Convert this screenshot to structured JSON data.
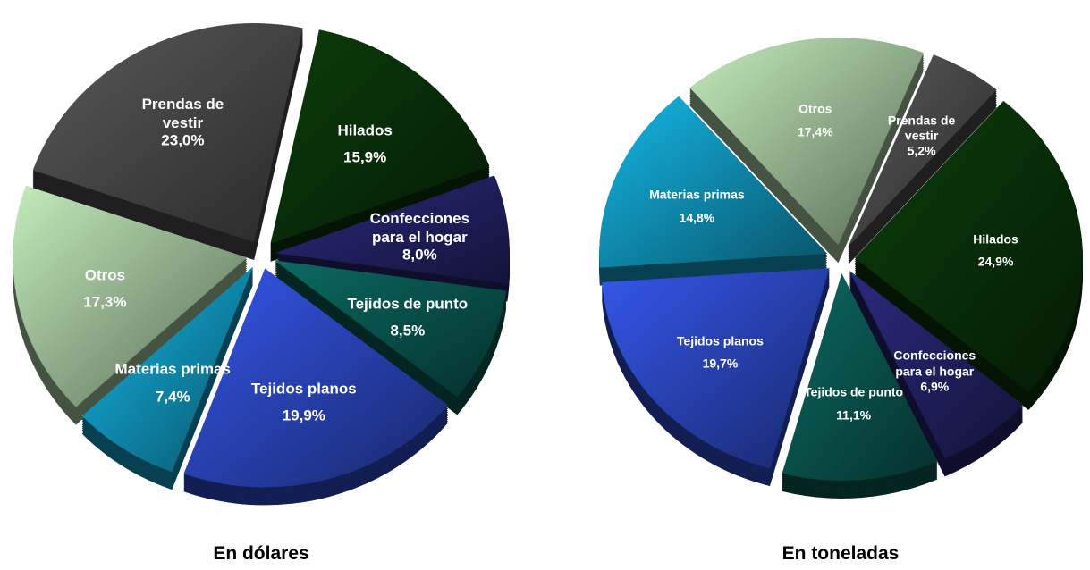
{
  "chart_data": [
    {
      "type": "pie",
      "title": "En dólares",
      "categories": [
        "Hilados",
        "Confecciones para el hogar",
        "Tejidos de punto",
        "Tejidos planos",
        "Materias primas",
        "Otros",
        "Prendas de vestir"
      ],
      "values": [
        15.9,
        8.0,
        8.5,
        19.9,
        7.4,
        17.3,
        23.0
      ],
      "value_labels": [
        "15,9%",
        "8,0%",
        "8,5%",
        "19,9%",
        "7,4%",
        "17,3%",
        "23,0%"
      ],
      "colors": [
        "#0b3d0b",
        "#2b2a7e",
        "#0c6a62",
        "#3557ec",
        "#14b8e8",
        "#c4ecbc",
        "#5a5a5a"
      ]
    },
    {
      "type": "pie",
      "title": "En toneladas",
      "categories": [
        "Prendas de vestir",
        "Hilados",
        "Confecciones para el hogar",
        "Tejidos de punto",
        "Tejidos planos",
        "Materias primas",
        "Otros"
      ],
      "values": [
        5.2,
        24.9,
        6.9,
        11.1,
        19.7,
        14.8,
        17.4
      ],
      "value_labels": [
        "5,2%",
        "24,9%",
        "6,9%",
        "11,1%",
        "19,7%",
        "14,8%",
        "17,4%"
      ],
      "colors": [
        "#5a5a5a",
        "#0b3d0b",
        "#2b2a7e",
        "#0c6a62",
        "#3557ec",
        "#14b8e8",
        "#c4ecbc"
      ]
    }
  ]
}
